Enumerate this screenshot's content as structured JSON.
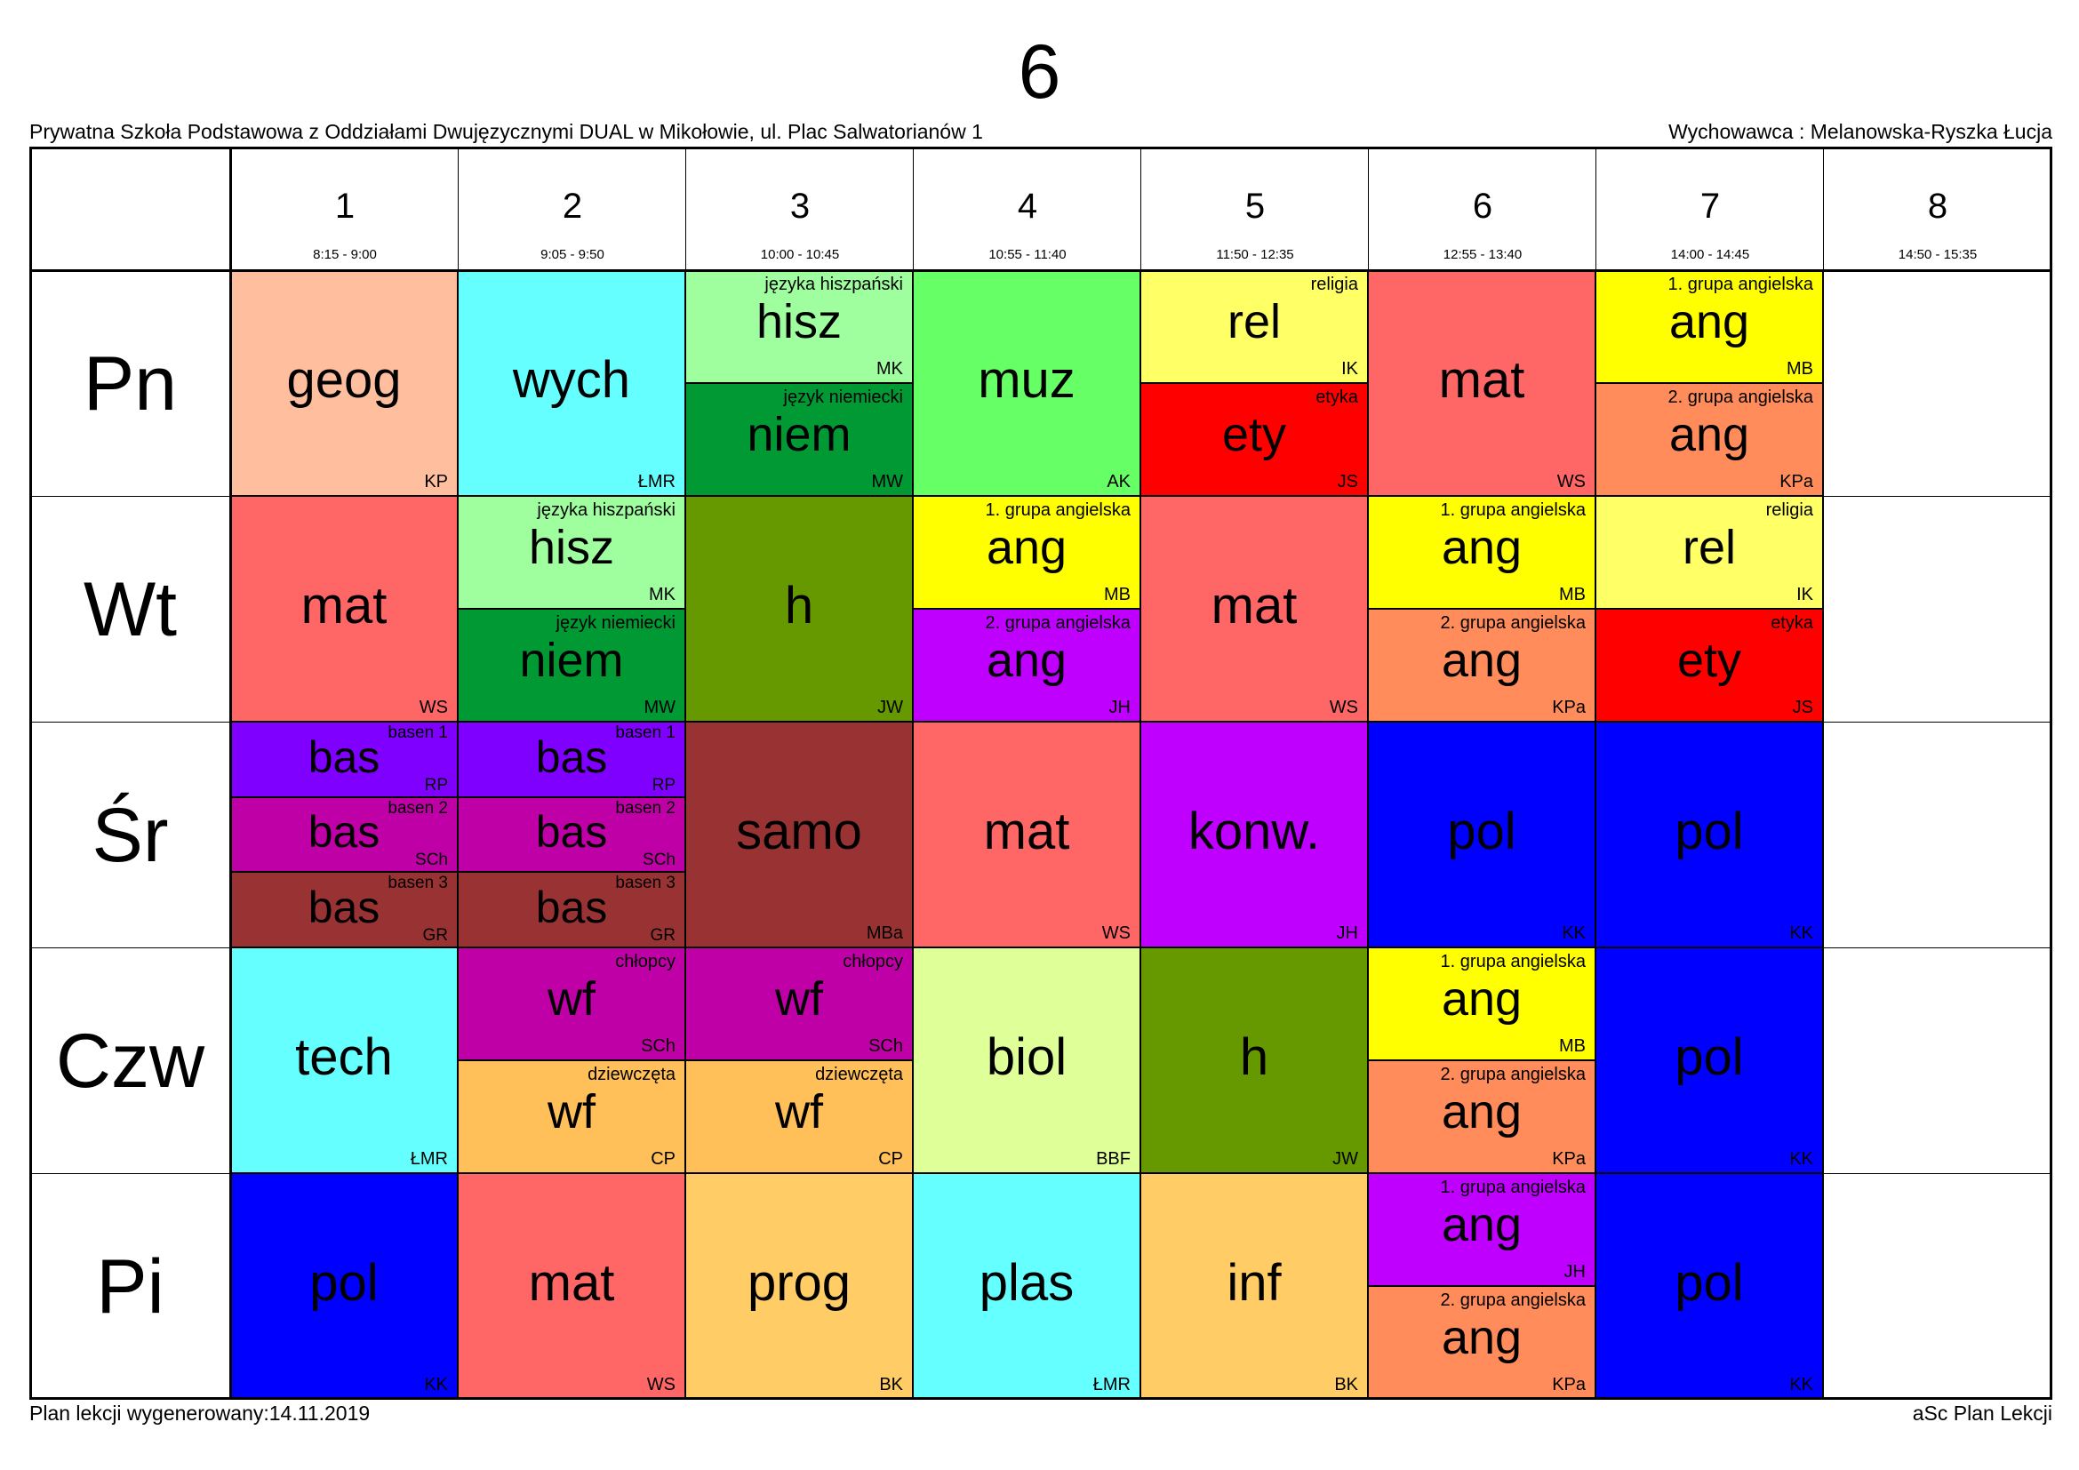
{
  "header": {
    "class_name": "6",
    "school": "Prywatna Szkoła Podstawowa z Oddziałami Dwujęzycznymi DUAL w Mikołowie, ul. Plac Salwatorianów 1",
    "homeroom_teacher": "Wychowawca : Melanowska-Ryszka Łucja"
  },
  "footer": {
    "generated": "Plan lekcji wygenerowany:14.11.2019",
    "software": "aSc Plan Lekcji"
  },
  "periods": [
    {
      "number": "1",
      "time": "8:15 - 9:00"
    },
    {
      "number": "2",
      "time": "9:05 - 9:50"
    },
    {
      "number": "3",
      "time": "10:00 - 10:45"
    },
    {
      "number": "4",
      "time": "10:55 - 11:40"
    },
    {
      "number": "5",
      "time": "11:50 - 12:35"
    },
    {
      "number": "6",
      "time": "12:55 - 13:40"
    },
    {
      "number": "7",
      "time": "14:00 - 14:45"
    },
    {
      "number": "8",
      "time": "14:50 - 15:35"
    }
  ],
  "days": [
    {
      "label": "Pn",
      "slots": [
        [
          {
            "subject": "geog",
            "teacher": "KP",
            "group": "",
            "color": "#FFBF9F"
          }
        ],
        [
          {
            "subject": "wych",
            "teacher": "ŁMR",
            "group": "",
            "color": "#66FFFF"
          }
        ],
        [
          {
            "subject": "hisz",
            "teacher": "MK",
            "group": "języka hiszpański",
            "color": "#9FFF9F"
          },
          {
            "subject": "niem",
            "teacher": "MW",
            "group": "język niemiecki",
            "color": "#009933"
          }
        ],
        [
          {
            "subject": "muz",
            "teacher": "AK",
            "group": "",
            "color": "#66FF66"
          }
        ],
        [
          {
            "subject": "rel",
            "teacher": "IK",
            "group": "religia",
            "color": "#FFFF66"
          },
          {
            "subject": "ety",
            "teacher": "JS",
            "group": "etyka",
            "color": "#FF0000"
          }
        ],
        [
          {
            "subject": "mat",
            "teacher": "WS",
            "group": "",
            "color": "#FF6666"
          }
        ],
        [
          {
            "subject": "ang",
            "teacher": "MB",
            "group": "1. grupa angielska",
            "color": "#FFFF00"
          },
          {
            "subject": "ang",
            "teacher": "KPa",
            "group": "2. grupa angielska",
            "color": "#FF8C5A"
          }
        ],
        []
      ]
    },
    {
      "label": "Wt",
      "slots": [
        [
          {
            "subject": "mat",
            "teacher": "WS",
            "group": "",
            "color": "#FF6666"
          }
        ],
        [
          {
            "subject": "hisz",
            "teacher": "MK",
            "group": "języka hiszpański",
            "color": "#9FFF9F"
          },
          {
            "subject": "niem",
            "teacher": "MW",
            "group": "język niemiecki",
            "color": "#009933"
          }
        ],
        [
          {
            "subject": "h",
            "teacher": "JW",
            "group": "",
            "color": "#669900"
          }
        ],
        [
          {
            "subject": "ang",
            "teacher": "MB",
            "group": "1. grupa angielska",
            "color": "#FFFF00"
          },
          {
            "subject": "ang",
            "teacher": "JH",
            "group": "2. grupa angielska",
            "color": "#BF00FF"
          }
        ],
        [
          {
            "subject": "mat",
            "teacher": "WS",
            "group": "",
            "color": "#FF6666"
          }
        ],
        [
          {
            "subject": "ang",
            "teacher": "MB",
            "group": "1. grupa angielska",
            "color": "#FFFF00"
          },
          {
            "subject": "ang",
            "teacher": "KPa",
            "group": "2. grupa angielska",
            "color": "#FF8C5A"
          }
        ],
        [
          {
            "subject": "rel",
            "teacher": "IK",
            "group": "religia",
            "color": "#FFFF66"
          },
          {
            "subject": "ety",
            "teacher": "JS",
            "group": "etyka",
            "color": "#FF0000"
          }
        ],
        []
      ]
    },
    {
      "label": "Śr",
      "slots": [
        [
          {
            "subject": "bas",
            "teacher": "RP",
            "group": "basen 1",
            "color": "#7F00FF"
          },
          {
            "subject": "bas",
            "teacher": "SCh",
            "group": "basen 2",
            "color": "#BF00A6"
          },
          {
            "subject": "bas",
            "teacher": "GR",
            "group": "basen 3",
            "color": "#993333"
          }
        ],
        [
          {
            "subject": "bas",
            "teacher": "RP",
            "group": "basen 1",
            "color": "#7F00FF"
          },
          {
            "subject": "bas",
            "teacher": "SCh",
            "group": "basen 2",
            "color": "#BF00A6"
          },
          {
            "subject": "bas",
            "teacher": "GR",
            "group": "basen 3",
            "color": "#993333"
          }
        ],
        [
          {
            "subject": "samo",
            "teacher": "MBa",
            "group": "",
            "color": "#993333"
          }
        ],
        [
          {
            "subject": "mat",
            "teacher": "WS",
            "group": "",
            "color": "#FF6666"
          }
        ],
        [
          {
            "subject": "konw.",
            "teacher": "JH",
            "group": "",
            "color": "#BF00FF"
          }
        ],
        [
          {
            "subject": "pol",
            "teacher": "KK",
            "group": "",
            "color": "#0000FF"
          }
        ],
        [
          {
            "subject": "pol",
            "teacher": "KK",
            "group": "",
            "color": "#0000FF"
          }
        ],
        []
      ]
    },
    {
      "label": "Czw",
      "slots": [
        [
          {
            "subject": "tech",
            "teacher": "ŁMR",
            "group": "",
            "color": "#66FFFF"
          }
        ],
        [
          {
            "subject": "wf",
            "teacher": "SCh",
            "group": "chłopcy",
            "color": "#BF00A6"
          },
          {
            "subject": "wf",
            "teacher": "CP",
            "group": "dziewczęta",
            "color": "#FFBF59"
          }
        ],
        [
          {
            "subject": "wf",
            "teacher": "SCh",
            "group": "chłopcy",
            "color": "#BF00A6"
          },
          {
            "subject": "wf",
            "teacher": "CP",
            "group": "dziewczęta",
            "color": "#FFBF59"
          }
        ],
        [
          {
            "subject": "biol",
            "teacher": "BBF",
            "group": "",
            "color": "#DFFF99"
          }
        ],
        [
          {
            "subject": "h",
            "teacher": "JW",
            "group": "",
            "color": "#669900"
          }
        ],
        [
          {
            "subject": "ang",
            "teacher": "MB",
            "group": "1. grupa angielska",
            "color": "#FFFF00"
          },
          {
            "subject": "ang",
            "teacher": "KPa",
            "group": "2. grupa angielska",
            "color": "#FF8C5A"
          }
        ],
        [
          {
            "subject": "pol",
            "teacher": "KK",
            "group": "",
            "color": "#0000FF"
          }
        ],
        []
      ]
    },
    {
      "label": "Pi",
      "slots": [
        [
          {
            "subject": "pol",
            "teacher": "KK",
            "group": "",
            "color": "#0000FF"
          }
        ],
        [
          {
            "subject": "mat",
            "teacher": "WS",
            "group": "",
            "color": "#FF6666"
          }
        ],
        [
          {
            "subject": "prog",
            "teacher": "BK",
            "group": "",
            "color": "#FFCC66"
          }
        ],
        [
          {
            "subject": "plas",
            "teacher": "ŁMR",
            "group": "",
            "color": "#66FFFF"
          }
        ],
        [
          {
            "subject": "inf",
            "teacher": "BK",
            "group": "",
            "color": "#FFCC66"
          }
        ],
        [
          {
            "subject": "ang",
            "teacher": "JH",
            "group": "1. grupa angielska",
            "color": "#BF00FF"
          },
          {
            "subject": "ang",
            "teacher": "KPa",
            "group": "2. grupa angielska",
            "color": "#FF8C5A"
          }
        ],
        [
          {
            "subject": "pol",
            "teacher": "KK",
            "group": "",
            "color": "#0000FF"
          }
        ],
        []
      ]
    }
  ]
}
